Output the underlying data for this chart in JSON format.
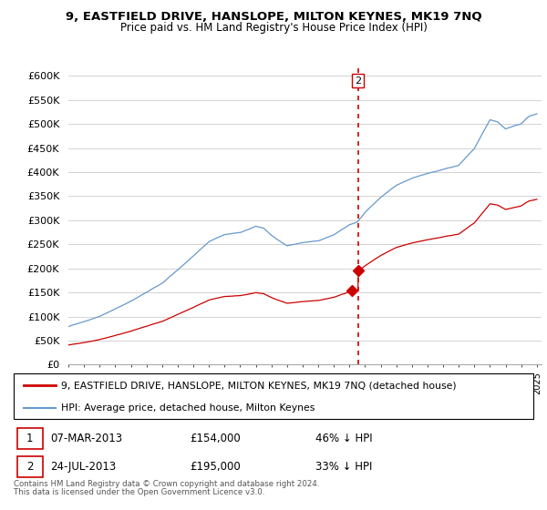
{
  "title": "9, EASTFIELD DRIVE, HANSLOPE, MILTON KEYNES, MK19 7NQ",
  "subtitle": "Price paid vs. HM Land Registry's House Price Index (HPI)",
  "ylabel_ticks": [
    "£0",
    "£50K",
    "£100K",
    "£150K",
    "£200K",
    "£250K",
    "£300K",
    "£350K",
    "£400K",
    "£450K",
    "£500K",
    "£550K",
    "£600K"
  ],
  "ytick_values": [
    0,
    50000,
    100000,
    150000,
    200000,
    250000,
    300000,
    350000,
    400000,
    450000,
    500000,
    550000,
    600000
  ],
  "x_start_year": 1995,
  "x_end_year": 2025,
  "legend_line1": "9, EASTFIELD DRIVE, HANSLOPE, MILTON KEYNES, MK19 7NQ (detached house)",
  "legend_line2": "HPI: Average price, detached house, Milton Keynes",
  "transaction1_date": "07-MAR-2013",
  "transaction1_price": "£154,000",
  "transaction1_hpi": "46% ↓ HPI",
  "transaction2_date": "24-JUL-2013",
  "transaction2_price": "£195,000",
  "transaction2_hpi": "33% ↓ HPI",
  "footnote1": "Contains HM Land Registry data © Crown copyright and database right 2024.",
  "footnote2": "This data is licensed under the Open Government Licence v3.0.",
  "red_color": "#cc0000",
  "blue_color": "#6699cc",
  "vline_color": "#cc0000",
  "grid_color": "#cccccc",
  "t_mar2013": 2013.167,
  "t_jul2013": 2013.542,
  "price_mar2013": 154000,
  "price_jul2013": 195000
}
